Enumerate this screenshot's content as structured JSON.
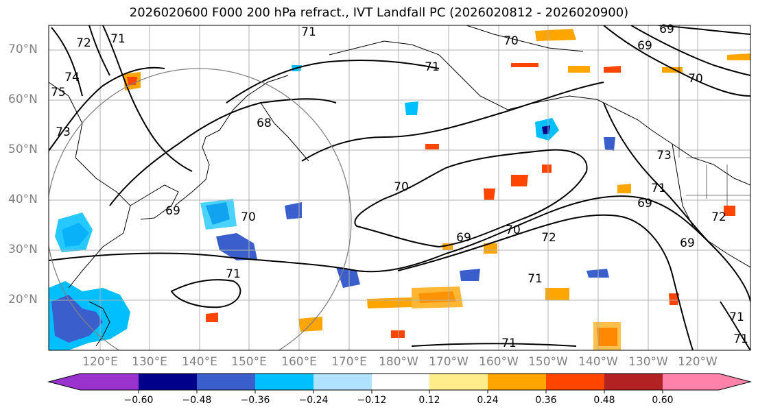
{
  "title": "2026020600 F000 200 hPa refract., IVT Landfall PC (2026020812 - 2026020900)",
  "lat_labels": [
    "70°N",
    "60°N",
    "50°N",
    "40°N",
    "30°N",
    "20°N"
  ],
  "lon_labels": [
    "120°E",
    "130°E",
    "140°E",
    "150°E",
    "160°E",
    "170°E",
    "180°W",
    "170°W",
    "160°W",
    "150°W",
    "140°W",
    "130°W",
    "120°W"
  ],
  "colorbar": {
    "ticks": [
      "−0.60",
      "−0.48",
      "−0.36",
      "−0.24",
      "−0.12",
      "0.12",
      "0.24",
      "0.36",
      "0.48",
      "0.60"
    ],
    "colors": [
      "#9a32cd",
      "#00008b",
      "#3a5fcd",
      "#00bfff",
      "#b0e2ff",
      "#ffffff",
      "#ffec8b",
      "#ffa500",
      "#ff4500",
      "#b22222",
      "#ff82ab"
    ]
  },
  "contour_labels": [
    "71",
    "72",
    "75",
    "74",
    "73",
    "71",
    "68",
    "69",
    "70",
    "70",
    "69",
    "70",
    "69",
    "70",
    "71",
    "70",
    "69",
    "72",
    "71",
    "73",
    "71",
    "69",
    "72",
    "69",
    "71",
    "71",
    "71",
    "71"
  ],
  "colors": {
    "contour": "#000000",
    "grid": "#b0b0b0",
    "circle": "#808080",
    "axis_label": "#808080"
  }
}
